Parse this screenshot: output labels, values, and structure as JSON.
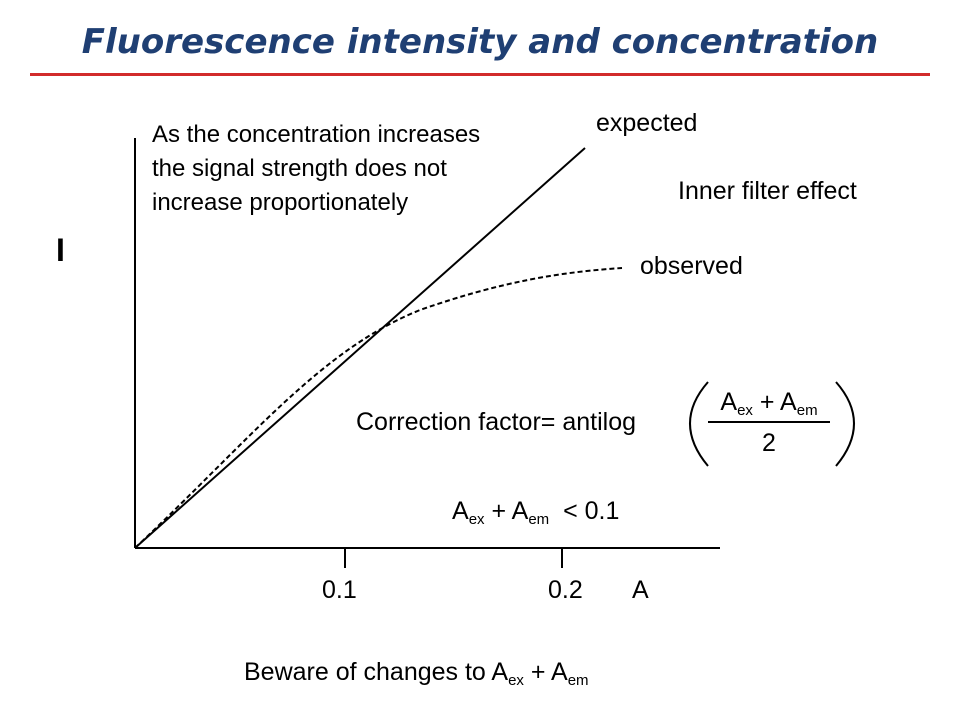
{
  "title": "Fluorescence intensity and concentration",
  "note": {
    "line1": "As the concentration increases",
    "line2": "the signal strength does not",
    "line3": "increase proportionately"
  },
  "y_axis_label": "I",
  "x_axis_label": "A",
  "x_ticks": [
    "0.1",
    "0.2"
  ],
  "curve_labels": {
    "expected": "expected",
    "observed": "observed"
  },
  "effect_label": "Inner filter effect",
  "correction": {
    "prefix": "Correction factor= antilog",
    "num_a": "A",
    "num_a_sub": "ex",
    "num_plus": " + A",
    "num_b_sub": "em",
    "denominator": "2"
  },
  "condition": {
    "a": "A",
    "a_sub": "ex",
    "plus": " + A",
    "b_sub": "em",
    "rest": "  < 0.1"
  },
  "footer": {
    "text": "Beware of changes to A",
    "a_sub": "ex",
    "plus": " + A",
    "b_sub": "em"
  }
}
